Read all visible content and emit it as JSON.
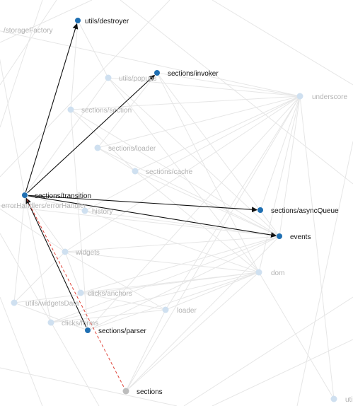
{
  "colors": {
    "active_node": "#1f6fb2",
    "faded_node": "#cfe0f0",
    "gray_node": "#bdbdbd",
    "background_edge": "#e6e6e6",
    "active_edge": "#111111",
    "dashed_edge": "#e0443a"
  },
  "nodes": [
    {
      "id": "utils/destroyer",
      "label": "utils/destroyer",
      "state": "active"
    },
    {
      "id": "storageFactory",
      "label": "/storageFactory",
      "state": "faded"
    },
    {
      "id": "utils/popups",
      "label": "utils/popups",
      "state": "faded"
    },
    {
      "id": "sections/invoker",
      "label": "sections/invoker",
      "state": "active"
    },
    {
      "id": "underscore",
      "label": "underscore",
      "state": "faded"
    },
    {
      "id": "sections/section",
      "label": "sections/section",
      "state": "faded"
    },
    {
      "id": "sections/loader",
      "label": "sections/loader",
      "state": "faded"
    },
    {
      "id": "sections/cache",
      "label": "sections/cache",
      "state": "faded"
    },
    {
      "id": "sections/transition",
      "label": "sections/transition",
      "state": "active"
    },
    {
      "id": "errorHandlers",
      "label": "errorHandlers/errorHandler",
      "state": "faded"
    },
    {
      "id": "history",
      "label": "history",
      "state": "faded"
    },
    {
      "id": "sections/asyncQueue",
      "label": "sections/asyncQueue",
      "state": "active"
    },
    {
      "id": "events",
      "label": "events",
      "state": "active"
    },
    {
      "id": "widgets",
      "label": "widgets",
      "state": "faded"
    },
    {
      "id": "dom",
      "label": "dom",
      "state": "faded"
    },
    {
      "id": "clicks/anchors",
      "label": "clicks/anchors",
      "state": "faded"
    },
    {
      "id": "utils/widgetsData",
      "label": "utils/widgetsData",
      "state": "faded"
    },
    {
      "id": "loader",
      "label": "loader",
      "state": "faded"
    },
    {
      "id": "clicks/forms",
      "label": "clicks/forms",
      "state": "faded"
    },
    {
      "id": "sections/parser",
      "label": "sections/parser",
      "state": "active"
    },
    {
      "id": "sections",
      "label": "sections",
      "state": "gray"
    },
    {
      "id": "uti",
      "label": "uti",
      "state": "faded"
    }
  ],
  "active_edges": [
    {
      "from": "sections/transition",
      "to": "utils/destroyer",
      "style": "solid"
    },
    {
      "from": "sections/transition",
      "to": "sections/invoker",
      "style": "solid"
    },
    {
      "from": "sections/transition",
      "to": "sections/asyncQueue",
      "style": "solid"
    },
    {
      "from": "sections/transition",
      "to": "events",
      "style": "solid"
    },
    {
      "from": "sections/parser",
      "to": "sections/transition",
      "style": "solid"
    },
    {
      "from": "sections",
      "to": "sections/transition",
      "style": "dashed"
    }
  ]
}
